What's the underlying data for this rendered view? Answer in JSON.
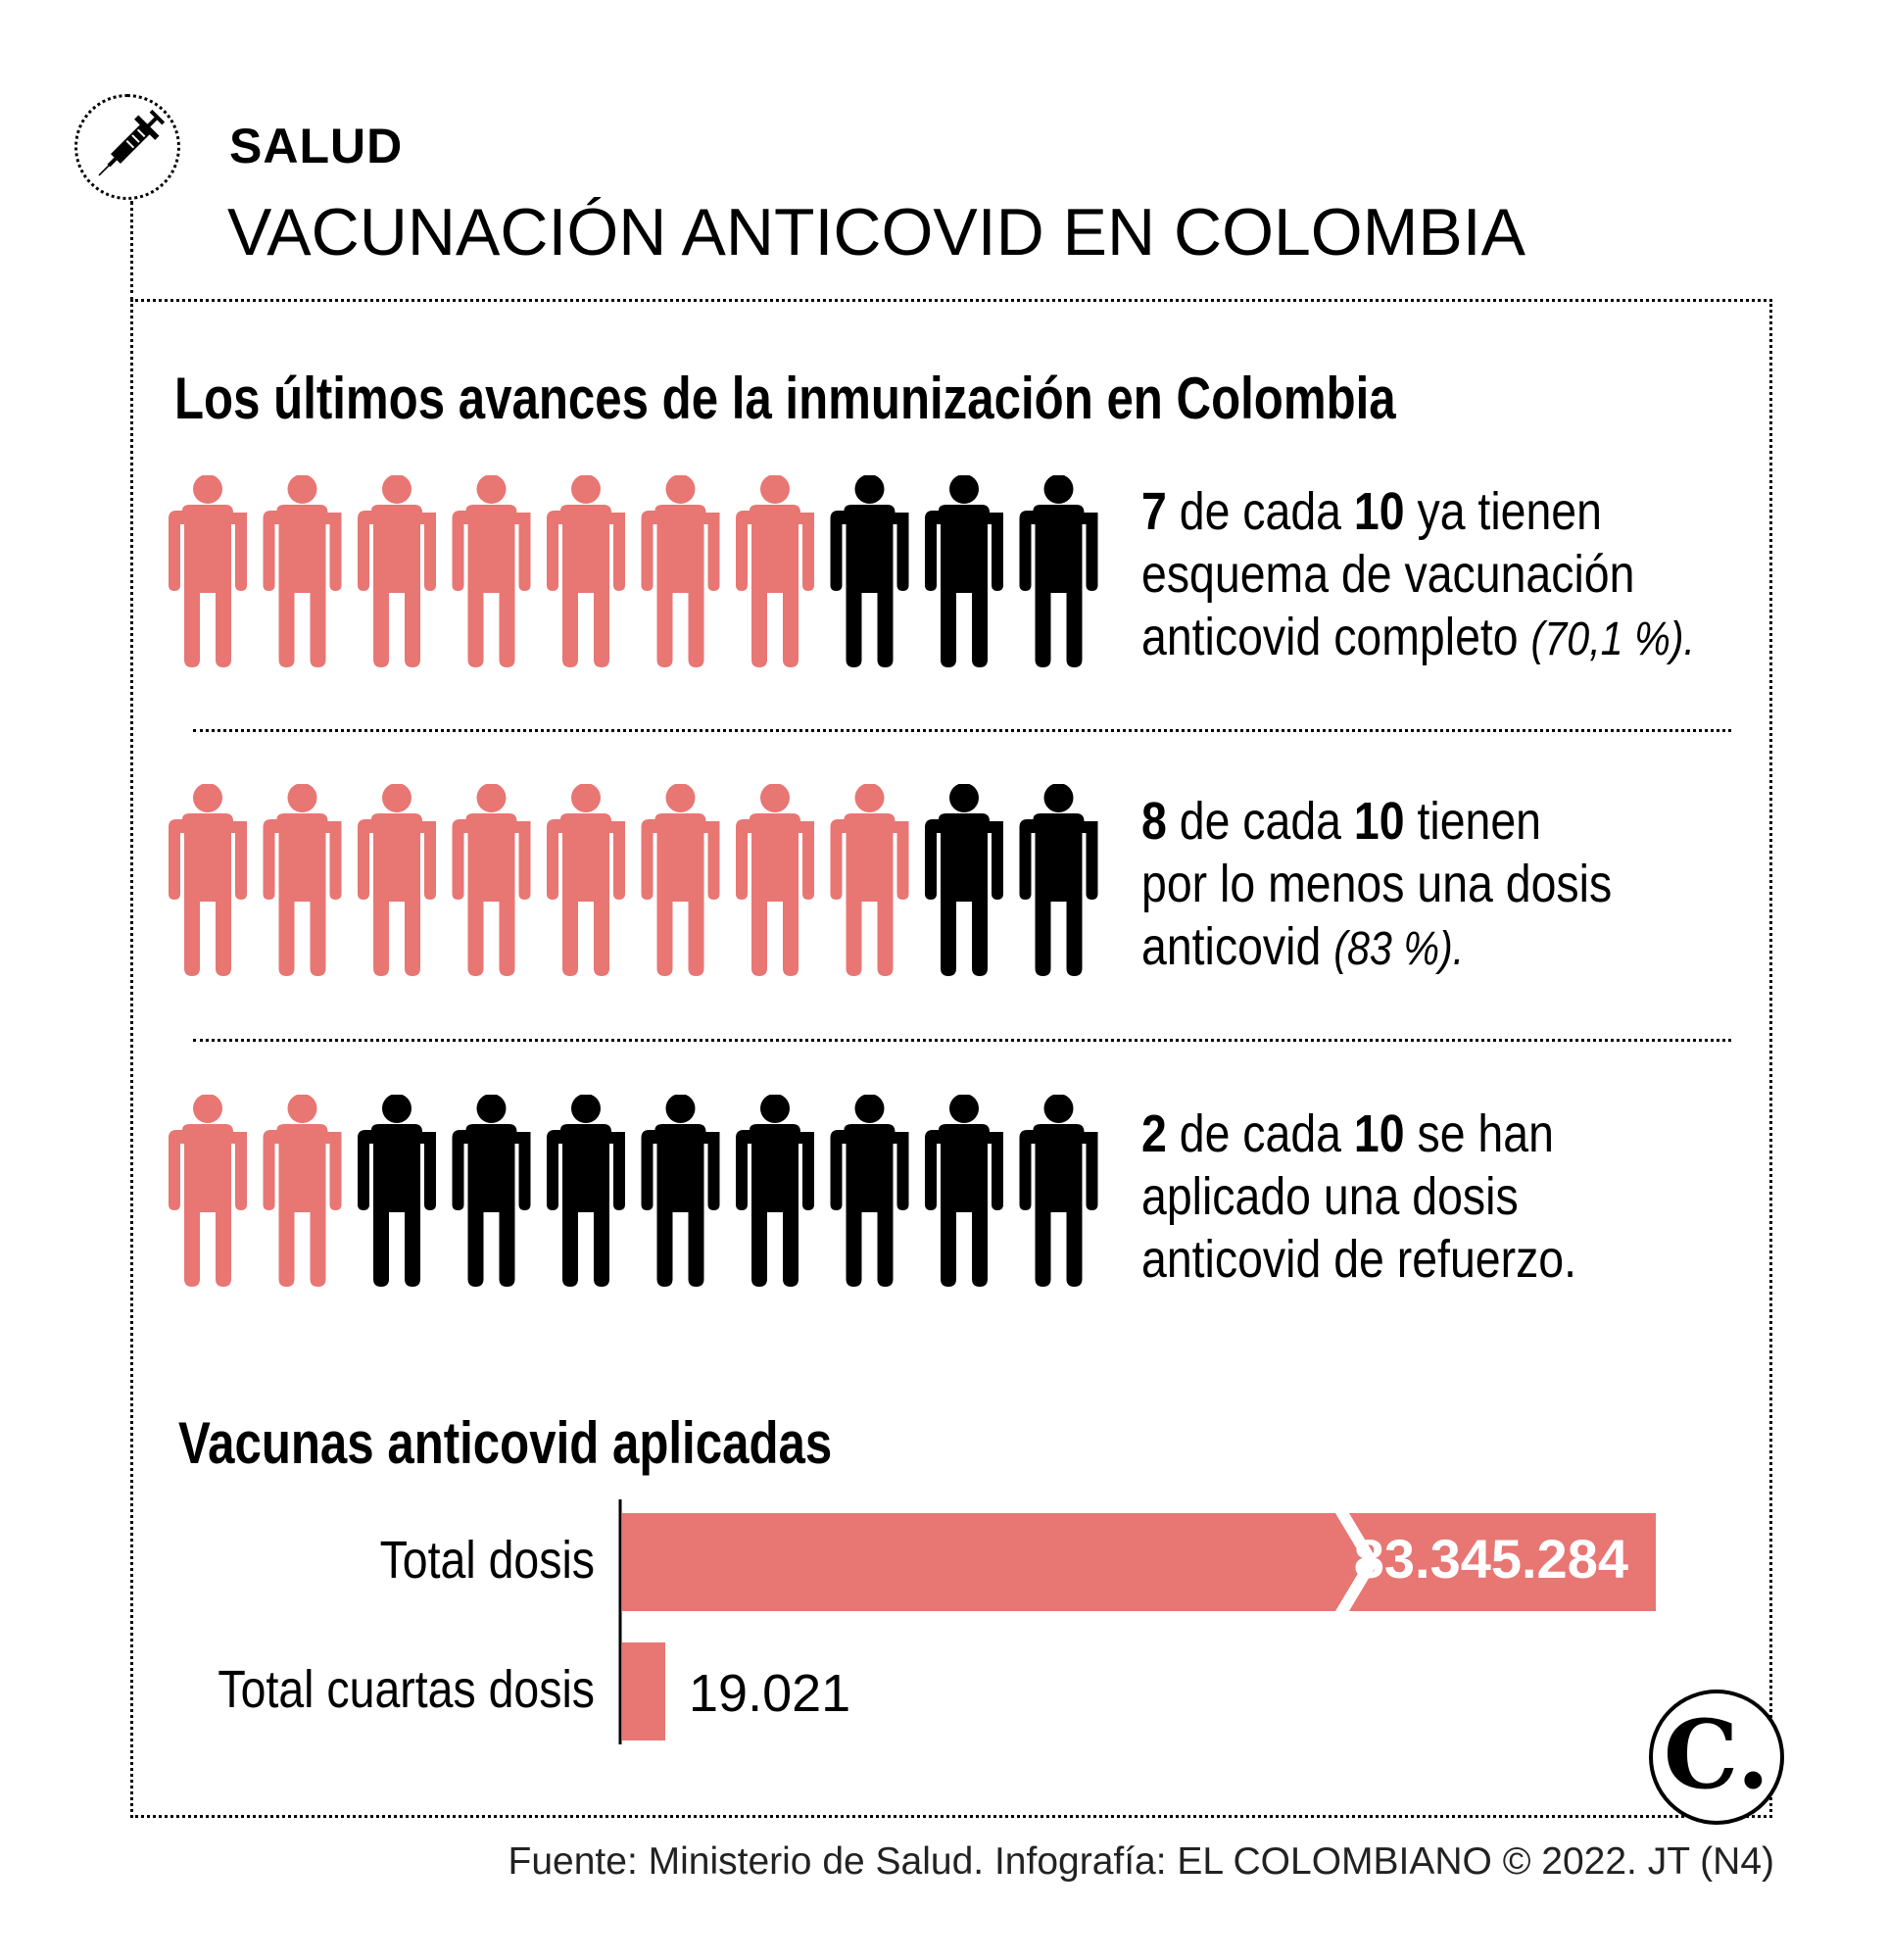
{
  "header": {
    "section": "SALUD",
    "title": "VACUNACIÓN ANTICOVID EN COLOMBIA"
  },
  "colors": {
    "highlight": "#e87673",
    "base": "#000000"
  },
  "icons": {
    "header": "syringe-icon",
    "figure": "person-icon"
  },
  "sections": {
    "immunization_heading": "Los últimos avances de la inmunización en Colombia",
    "vaccines_heading": "Vacunas anticovid aplicadas"
  },
  "chart_data": [
    {
      "type": "pictogram",
      "rows": [
        {
          "highlighted": 7,
          "total": 10,
          "text": {
            "num": "7",
            "mid": " de cada ",
            "den": "10",
            "rest": " ya tienen",
            "line2": "esquema de vacunación",
            "line3": "anticovid completo ",
            "pct": "(70,1 %)."
          }
        },
        {
          "highlighted": 8,
          "total": 10,
          "text": {
            "num": "8",
            "mid": " de cada ",
            "den": "10",
            "rest": " tienen",
            "line2": "por lo menos una dosis",
            "line3": "anticovid ",
            "pct": "(83 %)."
          }
        },
        {
          "highlighted": 2,
          "total": 10,
          "text": {
            "num": "2",
            "mid": " de cada ",
            "den": "10",
            "rest": " se han",
            "line2": "aplicado una dosis",
            "line3": "anticovid de refuerzo.",
            "pct": ""
          }
        }
      ]
    },
    {
      "type": "bar",
      "orientation": "horizontal",
      "categories": [
        "Total dosis",
        "Total cuartas dosis"
      ],
      "values": [
        83345284,
        19021
      ],
      "value_labels": [
        "83.345.284",
        "19.021"
      ],
      "axis_break": true
    }
  ],
  "footer": {
    "source": "Fuente: Ministerio de Salud. Infografía: EL COLOMBIANO © 2022. JT (N4)",
    "logo_letter": "C."
  }
}
